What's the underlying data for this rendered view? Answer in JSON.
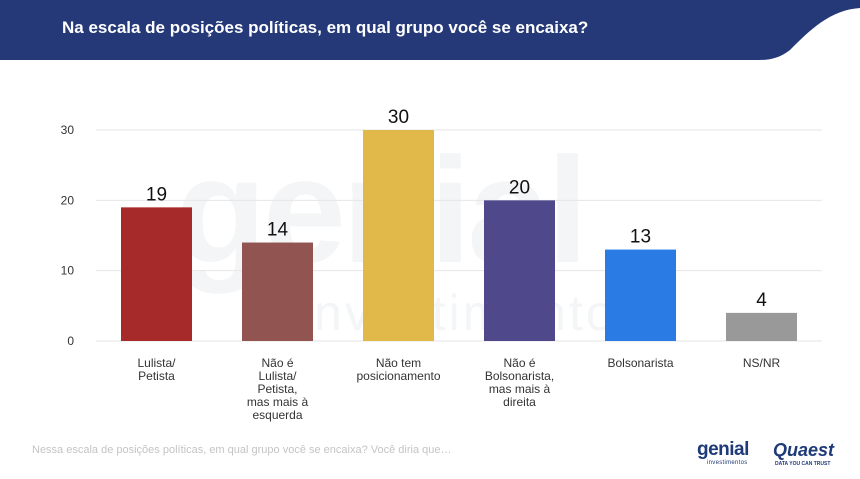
{
  "title": "Na escala de posições políticas, em qual grupo você se encaixa?",
  "footnote": "Nessa escala de posições políticas, em qual grupo você se encaixa? Você diria que…",
  "colors": {
    "header": "#253978",
    "accent": "#ffffff",
    "gridline": "#e6e6e6",
    "axis_text": "#333333"
  },
  "logos": {
    "genial": {
      "name": "genial",
      "sub": "investimentos"
    },
    "quaest": {
      "name": "Quaest",
      "tagline": "DATA YOU CAN TRUST"
    }
  },
  "chart_data": {
    "type": "bar",
    "categories": [
      [
        "Lulista/",
        "Petista"
      ],
      [
        "Não é",
        "Lulista/",
        "Petista,",
        "mas mais à",
        "esquerda"
      ],
      [
        "Não tem",
        "posicionamento"
      ],
      [
        "Não é",
        "Bolsonarista,",
        "mas mais à",
        "direita"
      ],
      [
        "Bolsonarista"
      ],
      [
        "NS/NR"
      ]
    ],
    "values": [
      19,
      14,
      30,
      20,
      13,
      4
    ],
    "colors": [
      "#a62a2a",
      "#925450",
      "#e1b84a",
      "#4f498c",
      "#2b7be5",
      "#999999"
    ],
    "yticks": [
      0,
      10,
      20,
      30
    ],
    "ylim": [
      0,
      30
    ],
    "grid": true,
    "legend": "none"
  }
}
